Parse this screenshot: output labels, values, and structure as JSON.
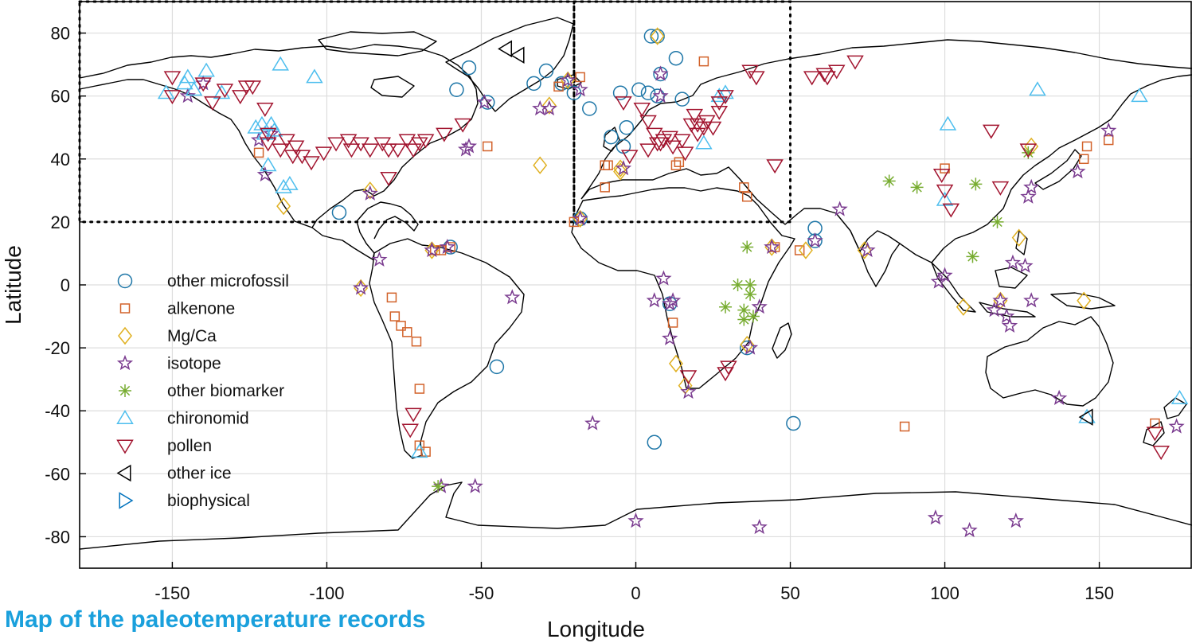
{
  "caption": "Map of the paleotemperature records",
  "colors": {
    "other_microfossil": "#1f77a8",
    "alkenone": "#d2622a",
    "mgca": "#e0b020",
    "isotope": "#7a3b8f",
    "other_biomarker": "#77ac30",
    "chironomid": "#4dbeee",
    "pollen": "#a2142f",
    "other_ice": "#000000",
    "biophysical": "#0072bd",
    "grid": "#dddddd",
    "coast": "#000000"
  },
  "chart_data": {
    "type": "scatter",
    "title": "",
    "xlabel": "Longitude",
    "ylabel": "Latitude",
    "xlim": [
      -180,
      180
    ],
    "ylim": [
      -90,
      90
    ],
    "xticks": [
      -150,
      -100,
      -50,
      0,
      50,
      100,
      150
    ],
    "yticks": [
      -80,
      -60,
      -40,
      -20,
      0,
      20,
      40,
      60,
      80
    ],
    "x_tick_labels": [
      "-150",
      "-100",
      "-50",
      "0",
      "50",
      "100",
      "150"
    ],
    "y_tick_labels": [
      "-80",
      "-60",
      "-40",
      "-20",
      "0",
      "20",
      "40",
      "60",
      "80"
    ],
    "grid": true,
    "legend_position": "middle-left",
    "regions": [
      {
        "lon": [
          -180,
          -20
        ],
        "lat": [
          20,
          90
        ]
      },
      {
        "lon": [
          -20,
          50
        ],
        "lat": [
          20,
          90
        ]
      }
    ],
    "series": [
      {
        "name": "other microfossil",
        "marker": "circle",
        "color_key": "other_microfossil",
        "points": [
          [
            -96,
            23
          ],
          [
            -60,
            12
          ],
          [
            -58,
            62
          ],
          [
            -54,
            69
          ],
          [
            -48,
            58
          ],
          [
            -45,
            -26
          ],
          [
            -33,
            64
          ],
          [
            -29,
            68
          ],
          [
            -24,
            64
          ],
          [
            -20,
            61
          ],
          [
            -18,
            21
          ],
          [
            -15,
            56
          ],
          [
            -8,
            47
          ],
          [
            -5,
            61
          ],
          [
            -4,
            44
          ],
          [
            1,
            62
          ],
          [
            4,
            61
          ],
          [
            5,
            79
          ],
          [
            6,
            -50
          ],
          [
            7,
            79
          ],
          [
            8,
            67
          ],
          [
            11,
            -6
          ],
          [
            13,
            72
          ],
          [
            36,
            -20
          ],
          [
            51,
            -44
          ],
          [
            58,
            18
          ],
          [
            58,
            14
          ],
          [
            15,
            59
          ],
          [
            7,
            60
          ],
          [
            -3,
            50
          ]
        ]
      },
      {
        "name": "alkenone",
        "marker": "square",
        "color_key": "alkenone",
        "points": [
          [
            -122,
            42
          ],
          [
            -79,
            -4
          ],
          [
            -78,
            -10
          ],
          [
            -76,
            -13
          ],
          [
            -74,
            -15
          ],
          [
            -71,
            -18
          ],
          [
            -70,
            -33
          ],
          [
            -70,
            -51
          ],
          [
            -68,
            -53
          ],
          [
            -65,
            11
          ],
          [
            -63,
            11
          ],
          [
            -60,
            12
          ],
          [
            -48,
            44
          ],
          [
            -20,
            20
          ],
          [
            -10,
            38
          ],
          [
            -9,
            38
          ],
          [
            -10,
            31
          ],
          [
            12,
            -12
          ],
          [
            13,
            38
          ],
          [
            14,
            39
          ],
          [
            22,
            71
          ],
          [
            35,
            31
          ],
          [
            36,
            28
          ],
          [
            53,
            11
          ],
          [
            45,
            12
          ],
          [
            87,
            -45
          ],
          [
            100,
            37
          ],
          [
            145,
            40
          ],
          [
            146,
            44
          ],
          [
            153,
            46
          ],
          [
            168,
            -44
          ],
          [
            -25,
            63
          ],
          [
            -18,
            66
          ]
        ]
      },
      {
        "name": "Mg/Ca",
        "marker": "diamond",
        "color_key": "mgca",
        "points": [
          [
            -114,
            25
          ],
          [
            -86,
            30
          ],
          [
            -89,
            -1
          ],
          [
            -66,
            11
          ],
          [
            -31,
            38
          ],
          [
            -18,
            21
          ],
          [
            -5,
            37
          ],
          [
            7,
            79
          ],
          [
            13,
            -25
          ],
          [
            16,
            -32
          ],
          [
            36,
            -19
          ],
          [
            44,
            12
          ],
          [
            55,
            11
          ],
          [
            74,
            11
          ],
          [
            106,
            -7
          ],
          [
            118,
            -5
          ],
          [
            124,
            15
          ],
          [
            145,
            -5
          ],
          [
            128,
            44
          ],
          [
            -22,
            65
          ],
          [
            -28,
            57
          ],
          [
            -5,
            36
          ]
        ]
      },
      {
        "name": "isotope",
        "marker": "star",
        "color_key": "isotope",
        "points": [
          [
            -145,
            60
          ],
          [
            -140,
            64
          ],
          [
            -120,
            35
          ],
          [
            -86,
            29
          ],
          [
            -83,
            8
          ],
          [
            -89,
            -1
          ],
          [
            -55,
            43
          ],
          [
            -54,
            44
          ],
          [
            -40,
            -4
          ],
          [
            -61,
            12
          ],
          [
            -66,
            11
          ],
          [
            -31,
            56
          ],
          [
            -28,
            56
          ],
          [
            -49,
            58
          ],
          [
            -22,
            65
          ],
          [
            -18,
            62
          ],
          [
            -18,
            21
          ],
          [
            -4,
            37
          ],
          [
            8,
            67
          ],
          [
            8,
            60
          ],
          [
            9,
            2
          ],
          [
            11,
            -6
          ],
          [
            11,
            -17
          ],
          [
            17,
            -34
          ],
          [
            37,
            -20
          ],
          [
            40,
            -7
          ],
          [
            44,
            12
          ],
          [
            58,
            14
          ],
          [
            66,
            24
          ],
          [
            75,
            11
          ],
          [
            98,
            1
          ],
          [
            100,
            3
          ],
          [
            116,
            -8
          ],
          [
            118,
            -5
          ],
          [
            120,
            -10
          ],
          [
            121,
            -13
          ],
          [
            122,
            7
          ],
          [
            126,
            6
          ],
          [
            127,
            28
          ],
          [
            128,
            31
          ],
          [
            143,
            36
          ],
          [
            153,
            49
          ],
          [
            137,
            -36
          ],
          [
            175,
            -45
          ],
          [
            -14,
            -44
          ],
          [
            -63,
            -64
          ],
          [
            -52,
            -64
          ],
          [
            0,
            -75
          ],
          [
            40,
            -77
          ],
          [
            97,
            -74
          ],
          [
            108,
            -78
          ],
          [
            123,
            -75
          ],
          [
            128,
            -5
          ],
          [
            6,
            -5
          ],
          [
            -122,
            46
          ],
          [
            -118,
            48
          ],
          [
            12,
            -5
          ]
        ]
      },
      {
        "name": "other biomarker",
        "marker": "asterisk",
        "color_key": "other_biomarker",
        "points": [
          [
            35,
            -11
          ],
          [
            37,
            0
          ],
          [
            29,
            -7
          ],
          [
            37,
            -3
          ],
          [
            38,
            -10
          ],
          [
            36,
            12
          ],
          [
            82,
            33
          ],
          [
            91,
            31
          ],
          [
            110,
            32
          ],
          [
            109,
            9
          ],
          [
            117,
            20
          ],
          [
            127,
            42
          ],
          [
            -64,
            -64
          ],
          [
            33,
            0
          ],
          [
            35,
            -8
          ]
        ]
      },
      {
        "name": "chironomid",
        "marker": "triangle-up",
        "color_key": "chironomid",
        "points": [
          [
            -152,
            61
          ],
          [
            -146,
            64
          ],
          [
            -145,
            66
          ],
          [
            -143,
            62
          ],
          [
            -139,
            68
          ],
          [
            -134,
            61
          ],
          [
            -121,
            51
          ],
          [
            -120,
            48
          ],
          [
            -118,
            51
          ],
          [
            -119,
            38
          ],
          [
            -114,
            31
          ],
          [
            -115,
            70
          ],
          [
            -104,
            66
          ],
          [
            -70,
            -53
          ],
          [
            22,
            45
          ],
          [
            27,
            60
          ],
          [
            29,
            61
          ],
          [
            101,
            51
          ],
          [
            100,
            27
          ],
          [
            130,
            62
          ],
          [
            163,
            60
          ],
          [
            176,
            -36
          ],
          [
            146,
            -42
          ],
          [
            -123,
            50
          ],
          [
            -117,
            49
          ],
          [
            -112,
            32
          ]
        ]
      },
      {
        "name": "pollen",
        "marker": "triangle-down",
        "color_key": "pollen",
        "points": [
          [
            -150,
            66
          ],
          [
            -140,
            64
          ],
          [
            -137,
            58
          ],
          [
            -133,
            62
          ],
          [
            -128,
            60
          ],
          [
            -126,
            63
          ],
          [
            -124,
            63
          ],
          [
            -120,
            56
          ],
          [
            -119,
            48
          ],
          [
            -119,
            45
          ],
          [
            -108,
            41
          ],
          [
            -105,
            39
          ],
          [
            -101,
            42
          ],
          [
            -97,
            45
          ],
          [
            -93,
            46
          ],
          [
            -92,
            43
          ],
          [
            -89,
            45
          ],
          [
            -86,
            43
          ],
          [
            -82,
            45
          ],
          [
            -80,
            43
          ],
          [
            -77,
            43
          ],
          [
            -74,
            46
          ],
          [
            -72,
            43
          ],
          [
            -70,
            45
          ],
          [
            -68,
            46
          ],
          [
            -62,
            48
          ],
          [
            -56,
            51
          ],
          [
            -111,
            41
          ],
          [
            -110,
            44
          ],
          [
            -113,
            46
          ],
          [
            -115,
            43
          ],
          [
            -80,
            34
          ],
          [
            -72,
            -41
          ],
          [
            -73,
            -46
          ],
          [
            17,
            -29
          ],
          [
            29,
            -28
          ],
          [
            30,
            -26
          ],
          [
            2,
            56
          ],
          [
            4,
            52
          ],
          [
            6,
            48
          ],
          [
            7,
            45
          ],
          [
            9,
            46
          ],
          [
            11,
            47
          ],
          [
            15,
            46
          ],
          [
            18,
            51
          ],
          [
            19,
            54
          ],
          [
            20,
            48
          ],
          [
            22,
            50
          ],
          [
            25,
            50
          ],
          [
            27,
            58
          ],
          [
            27,
            55
          ],
          [
            29,
            60
          ],
          [
            37,
            68
          ],
          [
            39,
            66
          ],
          [
            45,
            38
          ],
          [
            57,
            66
          ],
          [
            61,
            67
          ],
          [
            62,
            66
          ],
          [
            65,
            68
          ],
          [
            71,
            71
          ],
          [
            99,
            35
          ],
          [
            100,
            30
          ],
          [
            102,
            24
          ],
          [
            115,
            49
          ],
          [
            118,
            31
          ],
          [
            127,
            43
          ],
          [
            168,
            -47
          ],
          [
            170,
            -53
          ],
          [
            8,
            45
          ],
          [
            12,
            44
          ],
          [
            16,
            42
          ],
          [
            20,
            51
          ],
          [
            23,
            52
          ],
          [
            -2,
            41
          ],
          [
            4,
            43
          ],
          [
            -4,
            58
          ],
          [
            -150,
            60
          ]
        ]
      },
      {
        "name": "other ice",
        "marker": "triangle-left",
        "color_key": "other_ice",
        "points": [
          [
            -42,
            75
          ],
          [
            -38,
            73
          ],
          [
            146,
            -42
          ]
        ]
      },
      {
        "name": "biophysical",
        "marker": "triangle-right",
        "color_key": "biophysical",
        "points": []
      }
    ]
  }
}
